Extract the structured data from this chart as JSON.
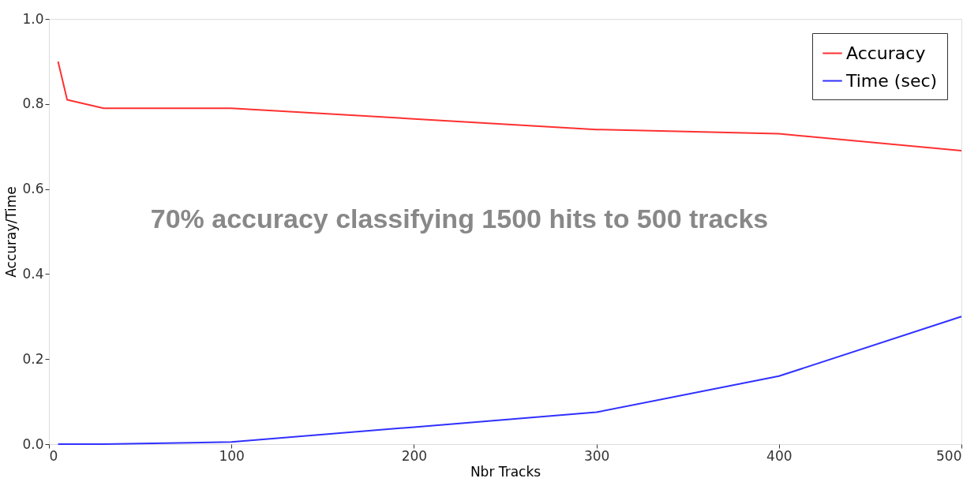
{
  "chart_data": {
    "type": "line",
    "xlabel": "Nbr Tracks",
    "ylabel": "Accuray/Time",
    "xlim": [
      0,
      500
    ],
    "xticks": [
      0,
      100,
      200,
      300,
      400,
      500
    ],
    "ylim": [
      0.0,
      1.0
    ],
    "yticks": [
      {
        "value": 0.0,
        "label": "0.0"
      },
      {
        "value": 0.2,
        "label": "0.2"
      },
      {
        "value": 0.4,
        "label": "0.4"
      },
      {
        "value": 0.6,
        "label": "0.6"
      },
      {
        "value": 0.8,
        "label": "0.8"
      },
      {
        "value": 1.0,
        "label": "1.0"
      }
    ],
    "x": [
      5,
      10,
      30,
      100,
      200,
      300,
      400,
      500
    ],
    "series": [
      {
        "name": "Accuracy",
        "color": "#ff3030",
        "values": [
          0.9,
          0.81,
          0.79,
          0.79,
          0.765,
          0.74,
          0.73,
          0.69
        ]
      },
      {
        "name": "Time (sec)",
        "color": "#3030ff",
        "values": [
          0.0,
          0.0,
          0.0,
          0.005,
          0.04,
          0.075,
          0.16,
          0.3
        ]
      }
    ],
    "annotations": [
      "70% accuracy classifying 1500 hits to 500 tracks"
    ],
    "legend": "top right",
    "grid": false,
    "marker": "none",
    "line_style": "solid"
  }
}
